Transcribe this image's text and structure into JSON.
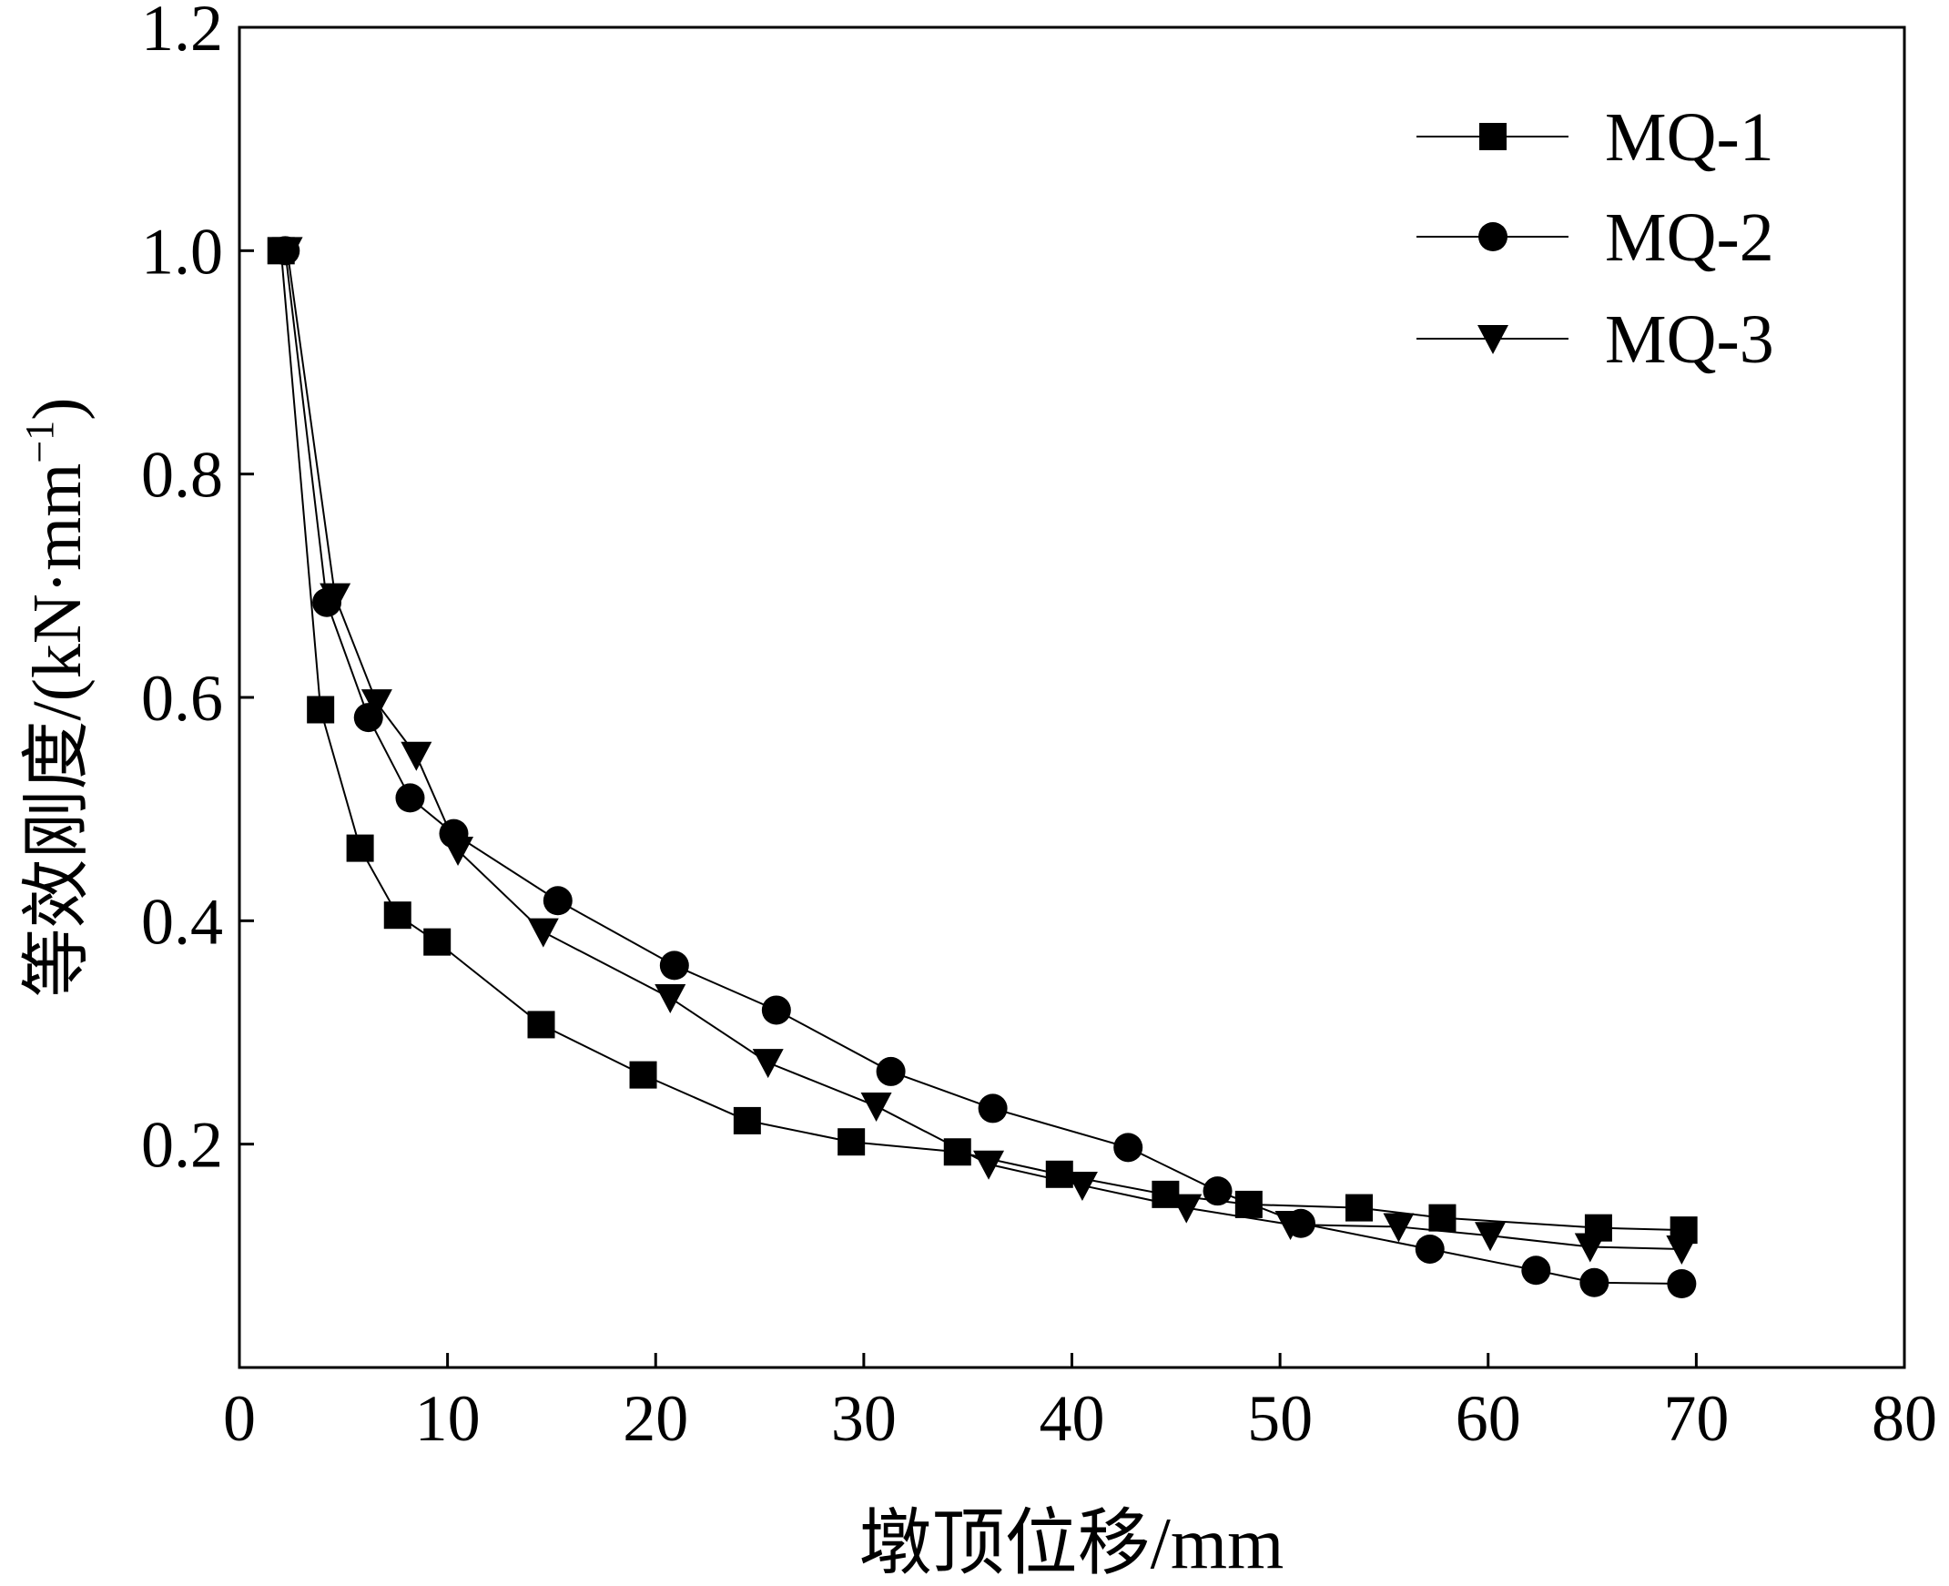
{
  "chart_data": {
    "type": "line",
    "title": "",
    "xlabel": "墩顶位移/mm",
    "ylabel": "等效刚度/(kN·mm",
    "ylabel_sup": "−1",
    "ylabel_close": ")",
    "xlim": [
      0,
      80
    ],
    "ylim": [
      0,
      1.2
    ],
    "x_ticks": [
      0,
      10,
      20,
      30,
      40,
      50,
      60,
      70,
      80
    ],
    "x_tick_labels": [
      "0",
      "10",
      "20",
      "30",
      "40",
      "50",
      "60",
      "70",
      "80"
    ],
    "y_ticks": [
      0.2,
      0.4,
      0.6,
      0.8,
      1.0,
      1.2
    ],
    "y_tick_labels": [
      "0.2",
      "0.4",
      "0.6",
      "0.8",
      "1.0",
      "1.2"
    ],
    "grid": false,
    "legend_position": "top-right",
    "series": [
      {
        "name": "MQ-1",
        "marker": "square",
        "x": [
          2.0,
          3.9,
          5.8,
          7.6,
          9.5,
          14.5,
          19.4,
          24.4,
          29.4,
          34.5,
          39.4,
          44.5,
          48.5,
          53.8,
          57.8,
          65.3,
          69.4
        ],
        "y": [
          1.0,
          0.589,
          0.465,
          0.405,
          0.381,
          0.307,
          0.262,
          0.221,
          0.202,
          0.193,
          0.173,
          0.155,
          0.146,
          0.143,
          0.134,
          0.125,
          0.123
        ]
      },
      {
        "name": "MQ-2",
        "marker": "circle",
        "x": [
          2.2,
          4.2,
          6.2,
          8.2,
          10.3,
          15.3,
          20.9,
          25.8,
          31.3,
          36.2,
          42.7,
          47.0,
          51.0,
          57.2,
          62.3,
          65.1,
          69.3
        ],
        "y": [
          1.0,
          0.685,
          0.582,
          0.51,
          0.478,
          0.418,
          0.36,
          0.32,
          0.265,
          0.232,
          0.197,
          0.158,
          0.129,
          0.106,
          0.087,
          0.076,
          0.075
        ]
      },
      {
        "name": "MQ-3",
        "marker": "triangle-down",
        "x": [
          2.3,
          4.6,
          6.6,
          8.5,
          10.5,
          14.6,
          20.7,
          25.4,
          30.6,
          36.0,
          40.5,
          45.5,
          50.5,
          55.7,
          60.1,
          64.9,
          69.3
        ],
        "y": [
          1.0,
          0.69,
          0.595,
          0.548,
          0.463,
          0.39,
          0.331,
          0.273,
          0.234,
          0.182,
          0.163,
          0.143,
          0.128,
          0.126,
          0.118,
          0.108,
          0.106
        ]
      }
    ]
  }
}
